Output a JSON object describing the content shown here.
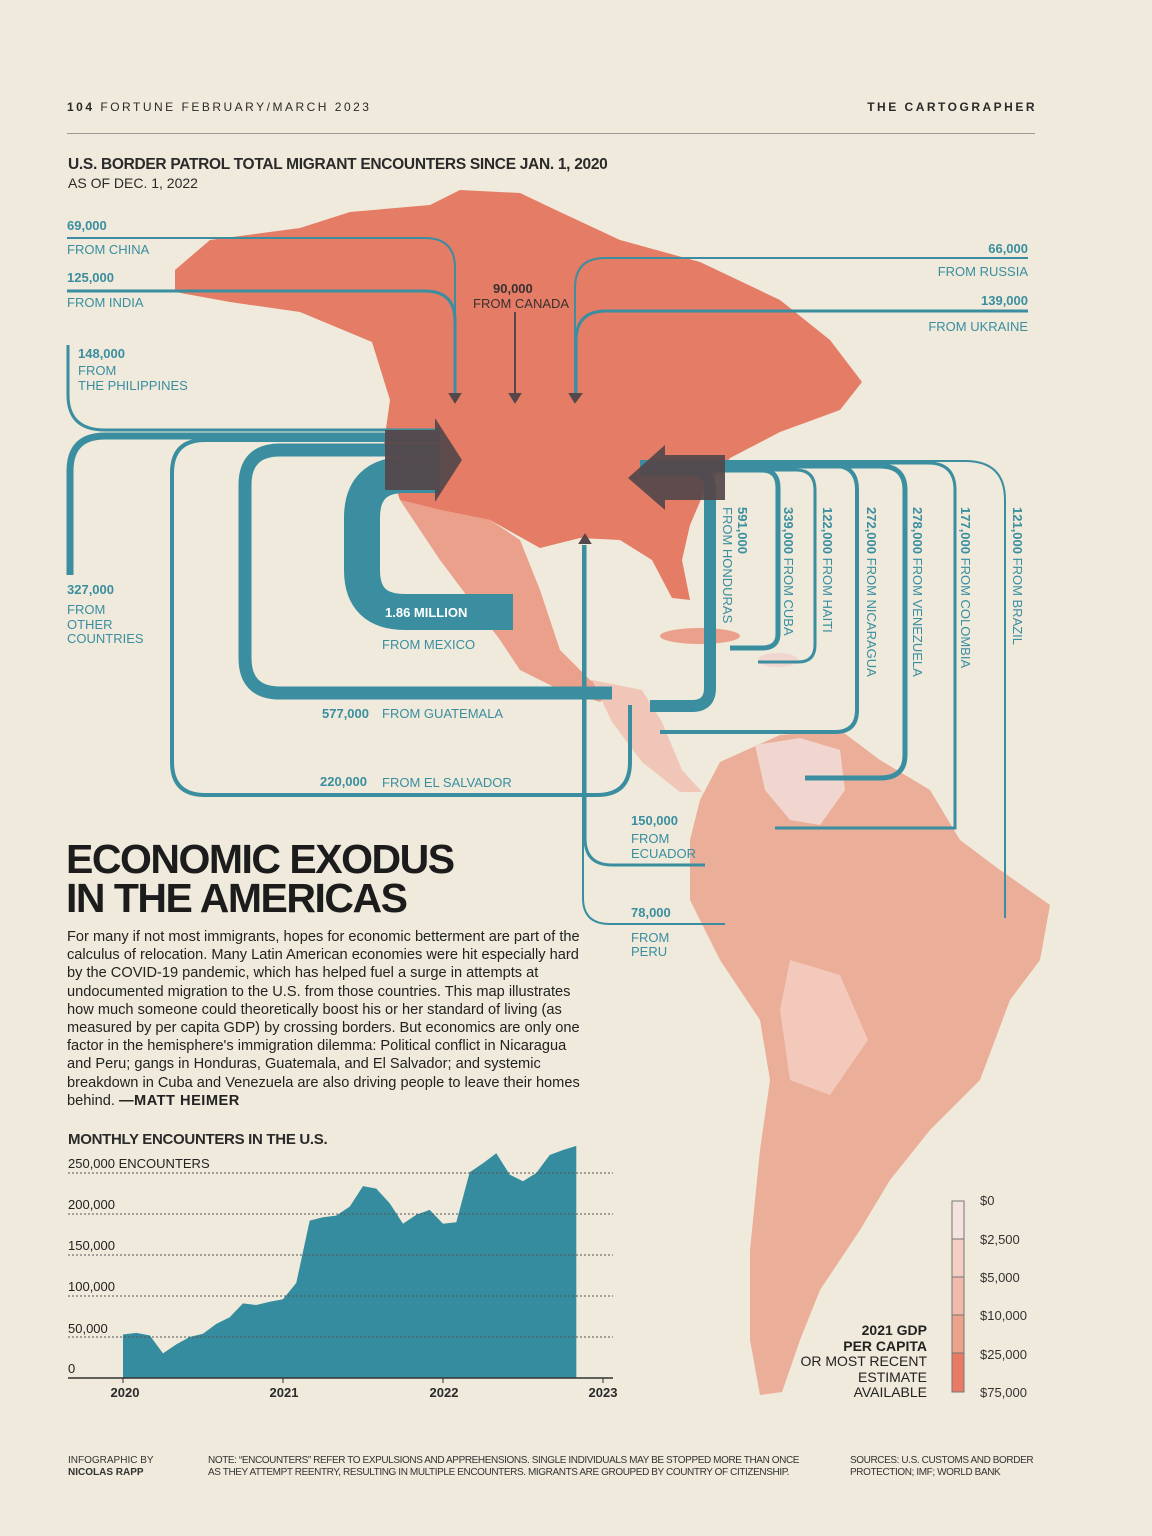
{
  "header": {
    "page_number": "104",
    "publication": "FORTUNE FEBRUARY/MARCH 2023",
    "section": "THE CARTOGRAPHER"
  },
  "map": {
    "title": "U.S. BORDER PATROL TOTAL MIGRANT ENCOUNTERS SINCE JAN. 1, 2020",
    "subtitle": "AS OF DEC. 1, 2022",
    "flows": {
      "china": {
        "value": "69,000",
        "label": "FROM CHINA"
      },
      "india": {
        "value": "125,000",
        "label": "FROM INDIA"
      },
      "philippines": {
        "value": "148,000",
        "label1": "FROM",
        "label2": "THE PHILIPPINES"
      },
      "canada": {
        "value": "90,000",
        "label": "FROM CANADA"
      },
      "russia": {
        "value": "66,000",
        "label": "FROM RUSSIA"
      },
      "ukraine": {
        "value": "139,000",
        "label": "FROM UKRAINE"
      },
      "other": {
        "value": "327,000",
        "label1": "FROM",
        "label2": "OTHER",
        "label3": "COUNTRIES"
      },
      "mexico": {
        "value": "1.86 MILLION",
        "label": "FROM MEXICO"
      },
      "guatemala": {
        "value": "577,000",
        "label": "FROM GUATEMALA"
      },
      "el_salvador": {
        "value": "220,000",
        "label": "FROM EL SALVADOR"
      },
      "honduras": {
        "value": "591,000",
        "label": "FROM HONDURAS"
      },
      "cuba": {
        "value": "339,000",
        "label": "FROM CUBA"
      },
      "haiti": {
        "value": "122,000",
        "label": "FROM HAITI"
      },
      "nicaragua": {
        "value": "272,000",
        "label": "FROM NICARAGUA"
      },
      "venezuela": {
        "value": "278,000",
        "label": "FROM VENEZUELA"
      },
      "colombia": {
        "value": "177,000",
        "label": "FROM COLOMBIA"
      },
      "brazil": {
        "value": "121,000",
        "label": "FROM BRAZIL"
      },
      "ecuador": {
        "value": "150,000",
        "label1": "FROM",
        "label2": "ECUADOR"
      },
      "peru": {
        "value": "78,000",
        "label1": "FROM",
        "label2": "PERU"
      }
    },
    "colors": {
      "flow": "#3a8ea0",
      "arrow": "#55474a",
      "usa_canada": "#e47c66",
      "mexico": "#eaa08a",
      "south_america": "#ebae98",
      "background": "#efeadb"
    },
    "legend": {
      "title1": "2021 GDP",
      "title2": "PER CAPITA",
      "sub1": "OR MOST RECENT",
      "sub2": "ESTIMATE",
      "sub3": "AVAILABLE",
      "ticks": [
        "$0",
        "$2,500",
        "$5,000",
        "$10,000",
        "$25,000",
        "$75,000"
      ],
      "colors": [
        "#f4e2df",
        "#f4cdc3",
        "#f1b9a9",
        "#ec a28b",
        "#e97a64"
      ]
    }
  },
  "article": {
    "headline1": "ECONOMIC EXODUS",
    "headline2": "IN THE AMERICAS",
    "body": "For many if not most immigrants, hopes for economic betterment are part of the calculus of relocation. Many Latin American economies were hit especially hard by the COVID-19 pandemic, which has helped fuel a surge in attempts at undocumented migration to the U.S. from those countries. This map illustrates how much someone could theoretically boost his or her standard of living (as measured by per capita GDP) by crossing borders. But economics are only one factor in the hemisphere's immigration dilemma: Political conflict in Nicaragua and Peru; gangs in Honduras, Guatemala, and El Salvador; and systemic breakdown in Cuba and Venezuela are also driving people to leave their homes behind. ",
    "byline": "—MATT HEIMER"
  },
  "chart_data": {
    "type": "area",
    "title": "MONTHLY ENCOUNTERS IN THE U.S.",
    "ylabel": "ENCOUNTERS",
    "ytick_labels": [
      "0",
      "50,000",
      "100,000",
      "150,000",
      "200,000",
      "250,000 ENCOUNTERS"
    ],
    "yticks": [
      0,
      50000,
      100000,
      150000,
      200000,
      250000
    ],
    "xtick_labels": [
      "2020",
      "2021",
      "2022",
      "2023"
    ],
    "ylim": [
      0,
      290000
    ],
    "xlim": [
      "2020-01",
      "2023-01"
    ],
    "grid": "horizontal dotted",
    "color": "#358c9f",
    "x": [
      "2020-01",
      "2020-02",
      "2020-03",
      "2020-04",
      "2020-05",
      "2020-06",
      "2020-07",
      "2020-08",
      "2020-09",
      "2020-10",
      "2020-11",
      "2020-12",
      "2021-01",
      "2021-02",
      "2021-03",
      "2021-04",
      "2021-05",
      "2021-06",
      "2021-07",
      "2021-08",
      "2021-09",
      "2021-10",
      "2021-11",
      "2021-12",
      "2022-01",
      "2022-02",
      "2022-03",
      "2022-04",
      "2022-05",
      "2022-06",
      "2022-07",
      "2022-08",
      "2022-09",
      "2022-10",
      "2022-11"
    ],
    "values": [
      53000,
      55000,
      52000,
      30000,
      41000,
      50000,
      54000,
      66000,
      74000,
      91000,
      89000,
      93000,
      96000,
      116000,
      192000,
      196000,
      198000,
      209000,
      234000,
      231000,
      213000,
      188000,
      199000,
      205000,
      188000,
      190000,
      251000,
      262000,
      274000,
      248000,
      240000,
      250000,
      272000,
      278000,
      283000
    ]
  },
  "footer": {
    "credit_label": "INFOGRAPHIC BY",
    "credit_name": "NICOLAS RAPP",
    "note1": "NOTE: “ENCOUNTERS” REFER TO EXPULSIONS AND APPREHENSIONS. SINGLE INDIVIDUALS MAY BE STOPPED MORE THAN ONCE",
    "note2": "AS THEY ATTEMPT REENTRY, RESULTING IN MULTIPLE ENCOUNTERS. MIGRANTS ARE GROUPED BY COUNTRY OF CITIZENSHIP.",
    "sources1": "SOURCES: U.S. CUSTOMS AND BORDER",
    "sources2": "PROTECTION; IMF; WORLD BANK"
  }
}
